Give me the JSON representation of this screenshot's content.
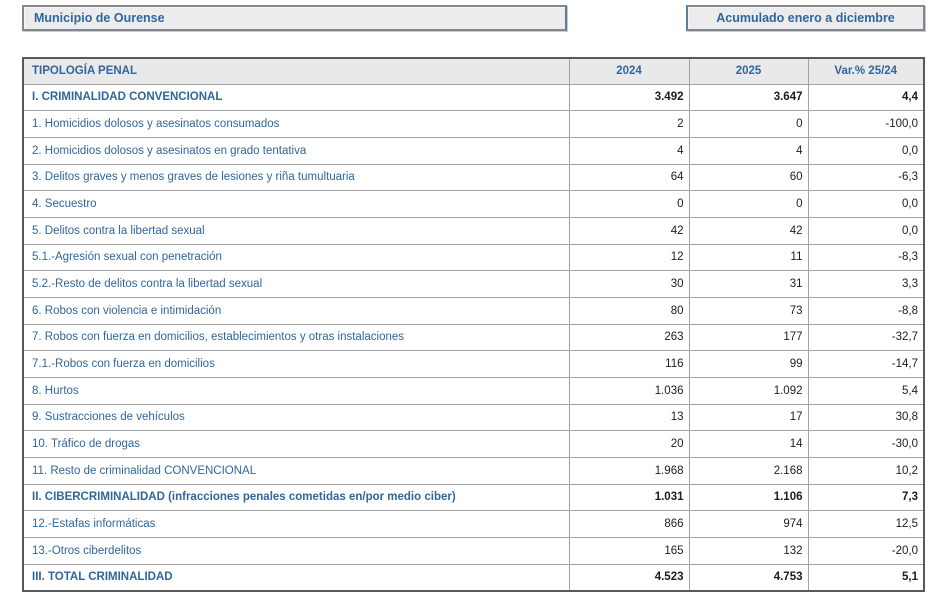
{
  "page": {
    "region_label": "Municipio de Ourense",
    "period_label": "Acumulado enero a diciembre"
  },
  "colors": {
    "accent_blue": "#31669b",
    "header_bg": "#e9e9e9",
    "box_bg": "#ececec",
    "outer_border": "#595959",
    "grid_border": "#a3a3a3",
    "value_text": "#1c1c1c"
  },
  "table": {
    "columns": [
      "TIPOLOGÍA PENAL",
      "2024",
      "2025",
      "Var.% 25/24"
    ],
    "rows": [
      {
        "label": "I. CRIMINALIDAD CONVENCIONAL",
        "v2024": "3.492",
        "v2025": "3.647",
        "var_pct": "4,4",
        "bold": true
      },
      {
        "label": "1. Homicidios dolosos y asesinatos consumados",
        "v2024": "2",
        "v2025": "0",
        "var_pct": "-100,0",
        "bold": false
      },
      {
        "label": "2. Homicidios dolosos y asesinatos en grado tentativa",
        "v2024": "4",
        "v2025": "4",
        "var_pct": "0,0",
        "bold": false
      },
      {
        "label": "3. Delitos graves y menos graves de lesiones y riña tumultuaria",
        "v2024": "64",
        "v2025": "60",
        "var_pct": "-6,3",
        "bold": false
      },
      {
        "label": "4. Secuestro",
        "v2024": "0",
        "v2025": "0",
        "var_pct": "0,0",
        "bold": false
      },
      {
        "label": "5. Delitos contra la libertad sexual",
        "v2024": "42",
        "v2025": "42",
        "var_pct": "0,0",
        "bold": false
      },
      {
        "label": "5.1.-Agresión sexual con penetración",
        "v2024": "12",
        "v2025": "11",
        "var_pct": "-8,3",
        "bold": false
      },
      {
        "label": "5.2.-Resto de delitos contra la libertad sexual",
        "v2024": "30",
        "v2025": "31",
        "var_pct": "3,3",
        "bold": false
      },
      {
        "label": "6. Robos con violencia e intimidación",
        "v2024": "80",
        "v2025": "73",
        "var_pct": "-8,8",
        "bold": false
      },
      {
        "label": "7. Robos con fuerza en domicilios, establecimientos y otras instalaciones",
        "v2024": "263",
        "v2025": "177",
        "var_pct": "-32,7",
        "bold": false
      },
      {
        "label": "7.1.-Robos con fuerza en domicilios",
        "v2024": "116",
        "v2025": "99",
        "var_pct": "-14,7",
        "bold": false
      },
      {
        "label": "8. Hurtos",
        "v2024": "1.036",
        "v2025": "1.092",
        "var_pct": "5,4",
        "bold": false
      },
      {
        "label": "9. Sustracciones de vehículos",
        "v2024": "13",
        "v2025": "17",
        "var_pct": "30,8",
        "bold": false
      },
      {
        "label": "10. Tráfico de drogas",
        "v2024": "20",
        "v2025": "14",
        "var_pct": "-30,0",
        "bold": false
      },
      {
        "label": "11. Resto de criminalidad CONVENCIONAL",
        "v2024": "1.968",
        "v2025": "2.168",
        "var_pct": "10,2",
        "bold": false
      },
      {
        "label": "II. CIBERCRIMINALIDAD (infracciones penales cometidas en/por medio ciber)",
        "v2024": "1.031",
        "v2025": "1.106",
        "var_pct": "7,3",
        "bold": true
      },
      {
        "label": "12.-Estafas informáticas",
        "v2024": "866",
        "v2025": "974",
        "var_pct": "12,5",
        "bold": false
      },
      {
        "label": "13.-Otros ciberdelitos",
        "v2024": "165",
        "v2025": "132",
        "var_pct": "-20,0",
        "bold": false
      },
      {
        "label": "III. TOTAL CRIMINALIDAD",
        "v2024": "4.523",
        "v2025": "4.753",
        "var_pct": "5,1",
        "bold": true
      }
    ]
  }
}
